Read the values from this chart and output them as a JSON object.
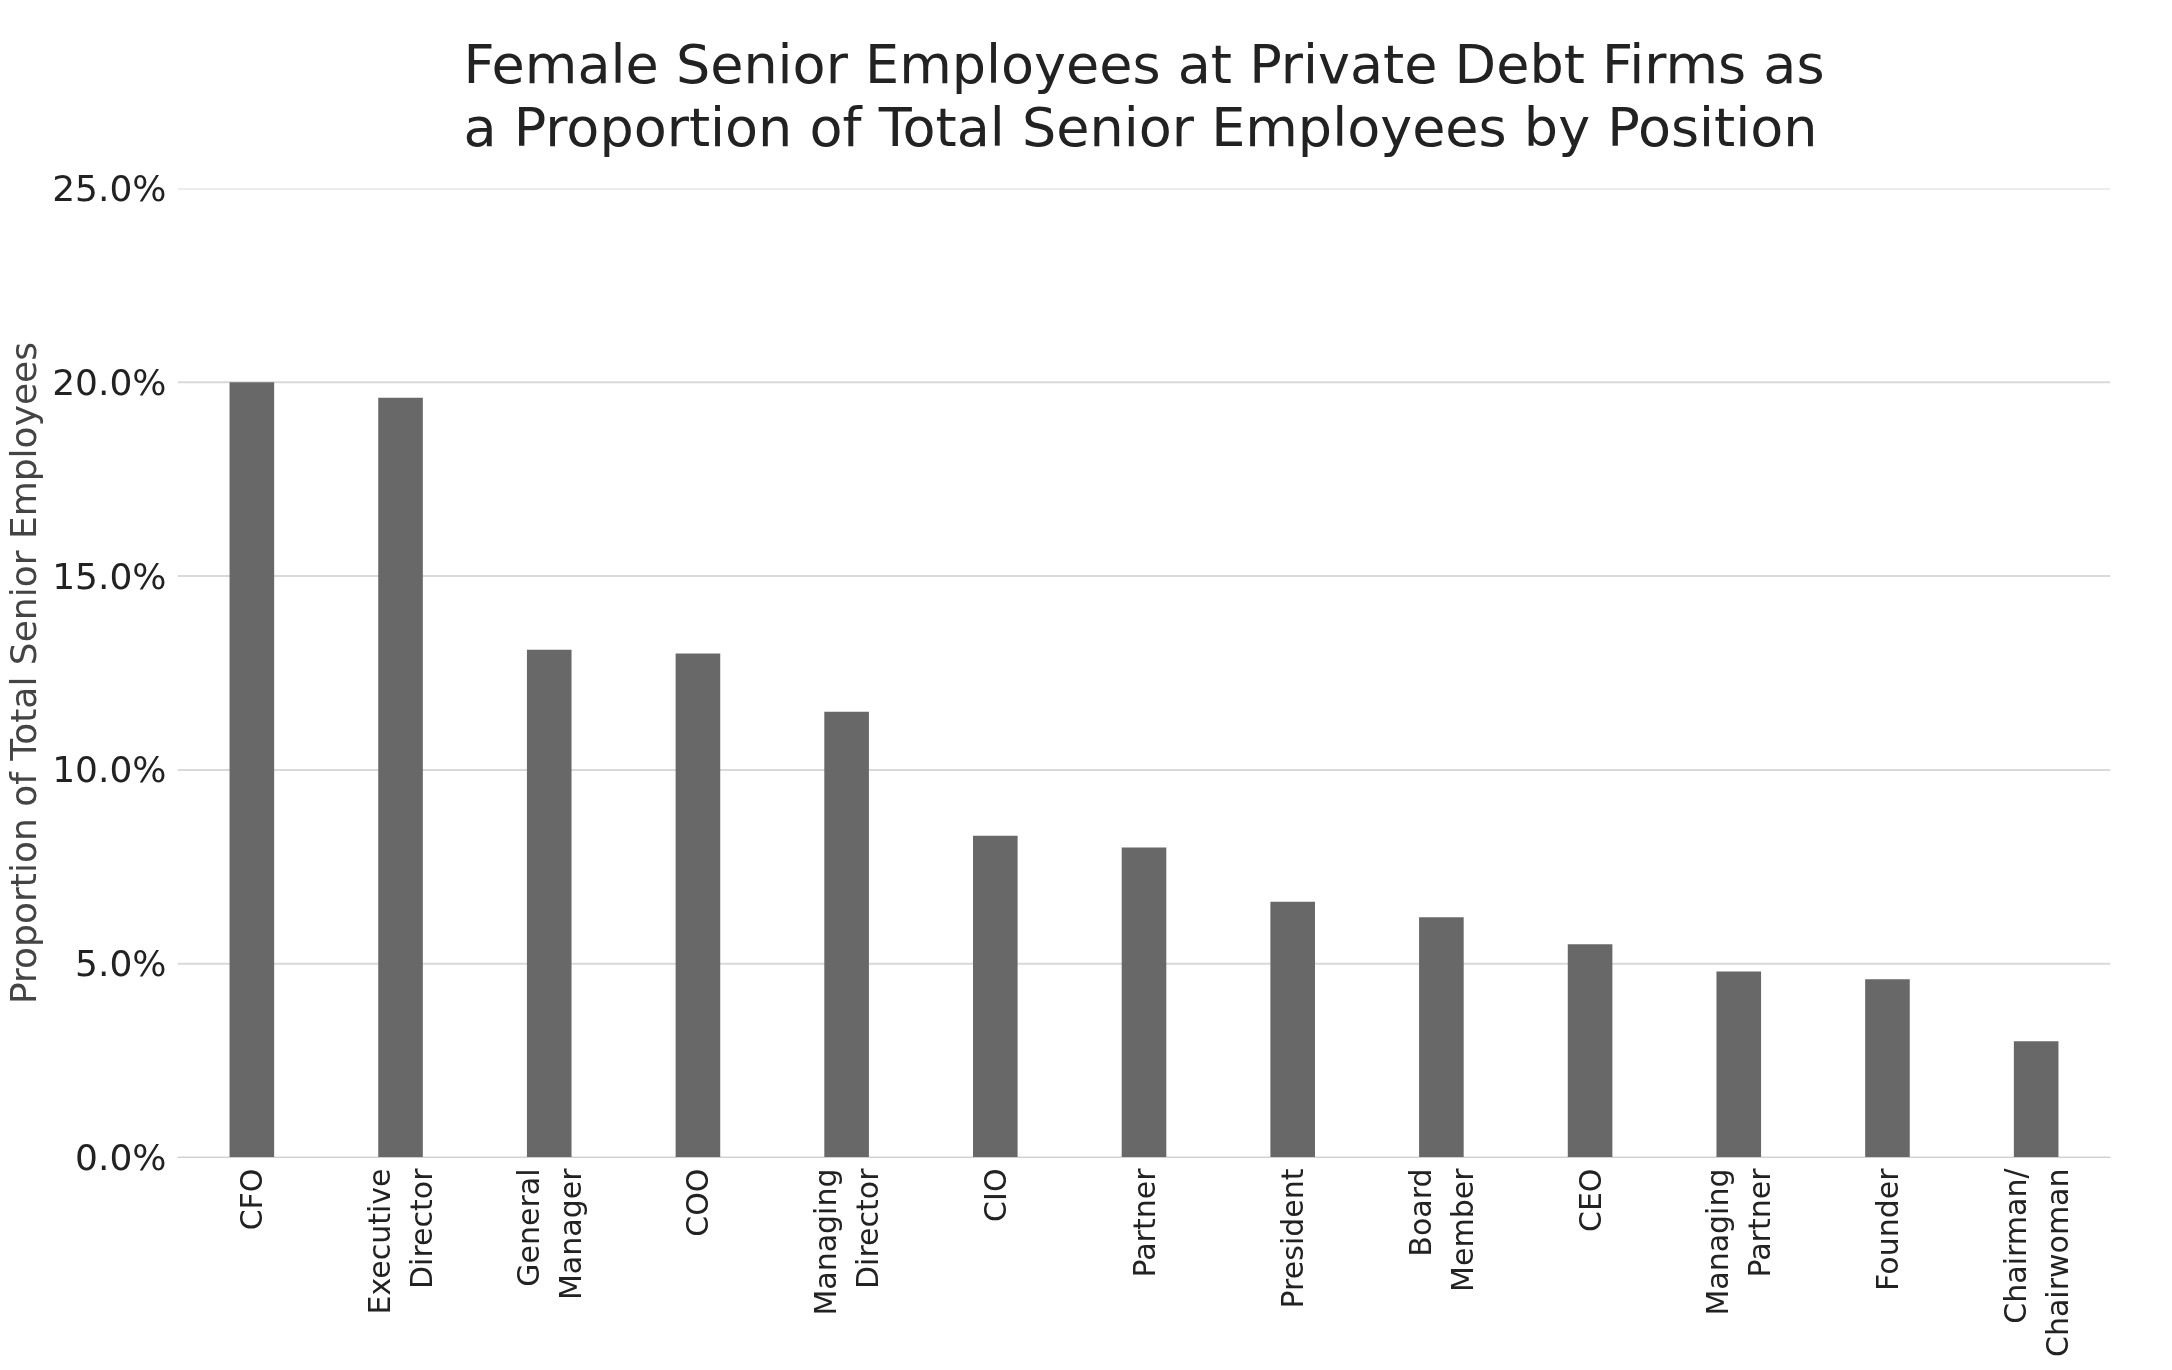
{
  "chart_data": {
    "type": "bar",
    "title": "Female Senior Employees at Private Debt Firms as\na Proportion of Total Senior Employees by Position",
    "ylabel": "Proportion of Total Senior Employees",
    "categories": [
      "CFO",
      "Executive Director",
      "General Manager",
      "COO",
      "Managing Director",
      "CIO",
      "Partner",
      "President",
      "Board Member",
      "CEO",
      "Managing Partner",
      "Founder",
      "Chairman/Chairwoman"
    ],
    "values": [
      20.0,
      19.6,
      13.1,
      13.0,
      11.5,
      8.3,
      8.0,
      6.6,
      6.2,
      5.5,
      4.8,
      4.6,
      3.0
    ],
    "color": "#686868",
    "ylim": [
      0,
      25
    ],
    "yticks": [
      {
        "value": 0,
        "label": "0.0%"
      },
      {
        "value": 5,
        "label": "5.0%"
      },
      {
        "value": 10,
        "label": "10.0%"
      },
      {
        "value": 15,
        "label": "15.0%"
      },
      {
        "value": 20,
        "label": "20.0%"
      },
      {
        "value": 25,
        "label": "25.0%"
      }
    ],
    "grid": "y"
  }
}
